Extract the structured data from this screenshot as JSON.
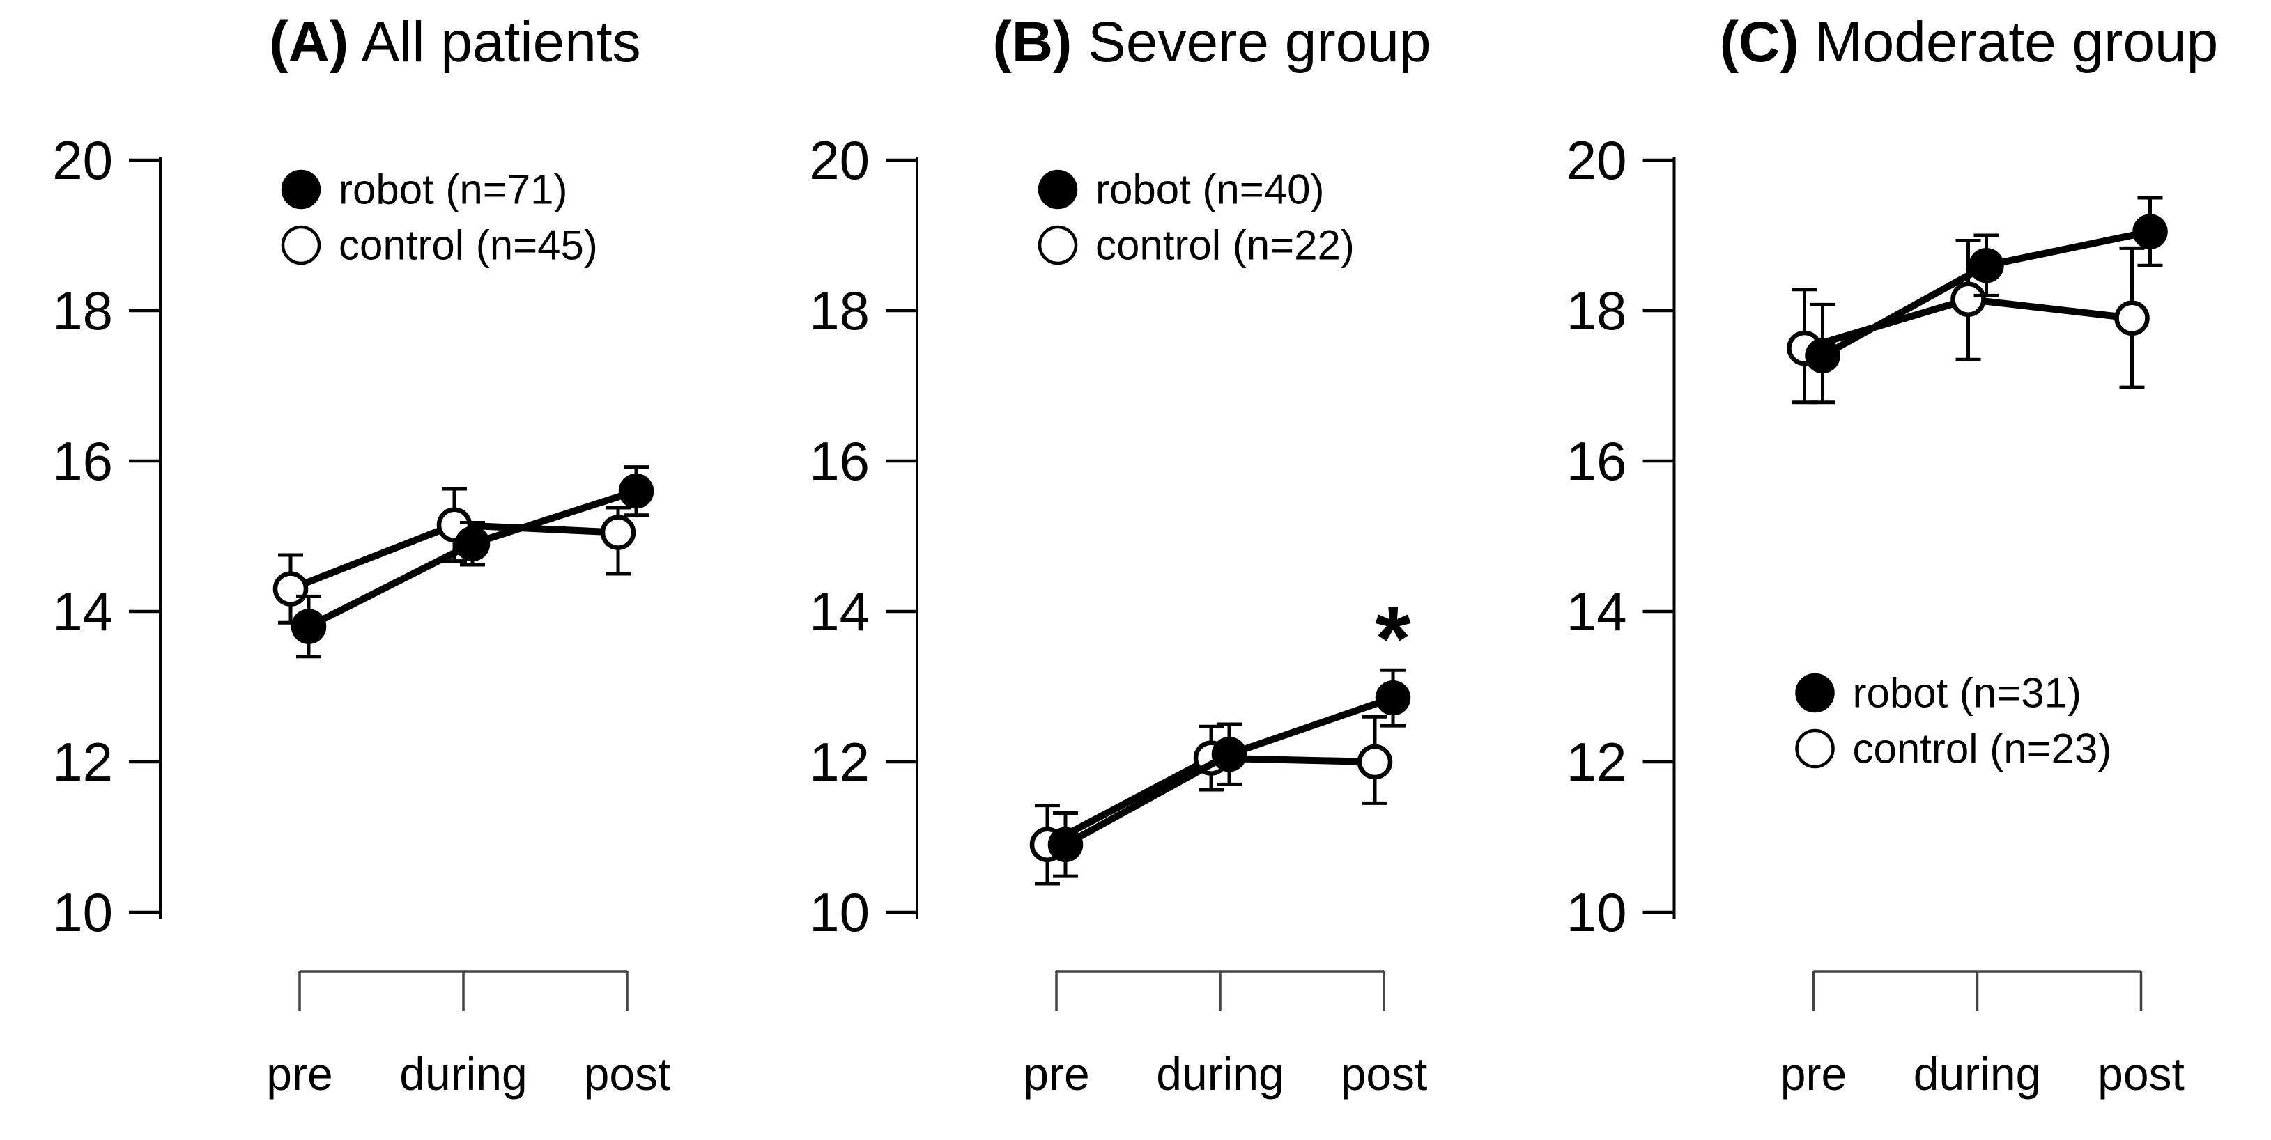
{
  "colors": {
    "line": "#000000",
    "filled_marker_fill": "#000000",
    "open_marker_fill": "#ffffff",
    "bracket": "#444444",
    "background": "#ffffff"
  },
  "chart_data": [
    {
      "type": "line",
      "title_prefix": "(A)",
      "title": "All patients",
      "x": [
        "pre",
        "during",
        "post"
      ],
      "ylim": [
        10,
        20
      ],
      "yticks": [
        20,
        18,
        16,
        14,
        12,
        10
      ],
      "grid": false,
      "legend_position": "upper-left",
      "series": [
        {
          "name": "robot",
          "n": 71,
          "legend_label": "robot (n=71)",
          "marker": "filled",
          "values": [
            13.8,
            14.9,
            15.6
          ],
          "err_up": [
            0.4,
            0.28,
            0.32
          ],
          "err_down": [
            0.4,
            0.28,
            0.32
          ]
        },
        {
          "name": "control",
          "n": 45,
          "legend_label": "control (n=45)",
          "marker": "open",
          "values": [
            14.3,
            15.15,
            15.05
          ],
          "err_up": [
            0.45,
            0.48,
            0.33
          ],
          "err_down": [
            0.45,
            0.48,
            0.55
          ]
        }
      ],
      "annotations": []
    },
    {
      "type": "line",
      "title_prefix": "(B)",
      "title": "Severe group",
      "x": [
        "pre",
        "during",
        "post"
      ],
      "ylim": [
        10,
        20
      ],
      "yticks": [
        20,
        18,
        16,
        14,
        12,
        10
      ],
      "grid": false,
      "legend_position": "upper-left",
      "series": [
        {
          "name": "robot",
          "n": 40,
          "legend_label": "robot (n=40)",
          "marker": "filled",
          "values": [
            10.9,
            12.1,
            12.85
          ],
          "err_up": [
            0.42,
            0.4,
            0.37
          ],
          "err_down": [
            0.42,
            0.4,
            0.37
          ]
        },
        {
          "name": "control",
          "n": 22,
          "legend_label": "control (n=22)",
          "marker": "open",
          "values": [
            10.9,
            12.05,
            12.0
          ],
          "err_up": [
            0.52,
            0.42,
            0.6
          ],
          "err_down": [
            0.52,
            0.42,
            0.55
          ]
        }
      ],
      "annotations": [
        {
          "text": "*",
          "series": "robot",
          "category": "post",
          "y": 13.85
        }
      ]
    },
    {
      "type": "line",
      "title_prefix": "(C)",
      "title": "Moderate group",
      "x": [
        "pre",
        "during",
        "post"
      ],
      "ylim": [
        10,
        20
      ],
      "yticks": [
        20,
        18,
        16,
        14,
        12,
        10
      ],
      "grid": false,
      "legend_position": "middle-left",
      "series": [
        {
          "name": "robot",
          "n": 31,
          "legend_label": "robot (n=31)",
          "marker": "filled",
          "values": [
            17.4,
            18.6,
            19.05
          ],
          "err_up": [
            0.68,
            0.4,
            0.45
          ],
          "err_down": [
            0.62,
            0.4,
            0.45
          ]
        },
        {
          "name": "control",
          "n": 23,
          "legend_label": "control (n=23)",
          "marker": "open",
          "values": [
            17.5,
            18.15,
            17.9
          ],
          "err_up": [
            0.78,
            0.78,
            0.93
          ],
          "err_down": [
            0.72,
            0.8,
            0.92
          ]
        }
      ],
      "annotations": []
    }
  ]
}
